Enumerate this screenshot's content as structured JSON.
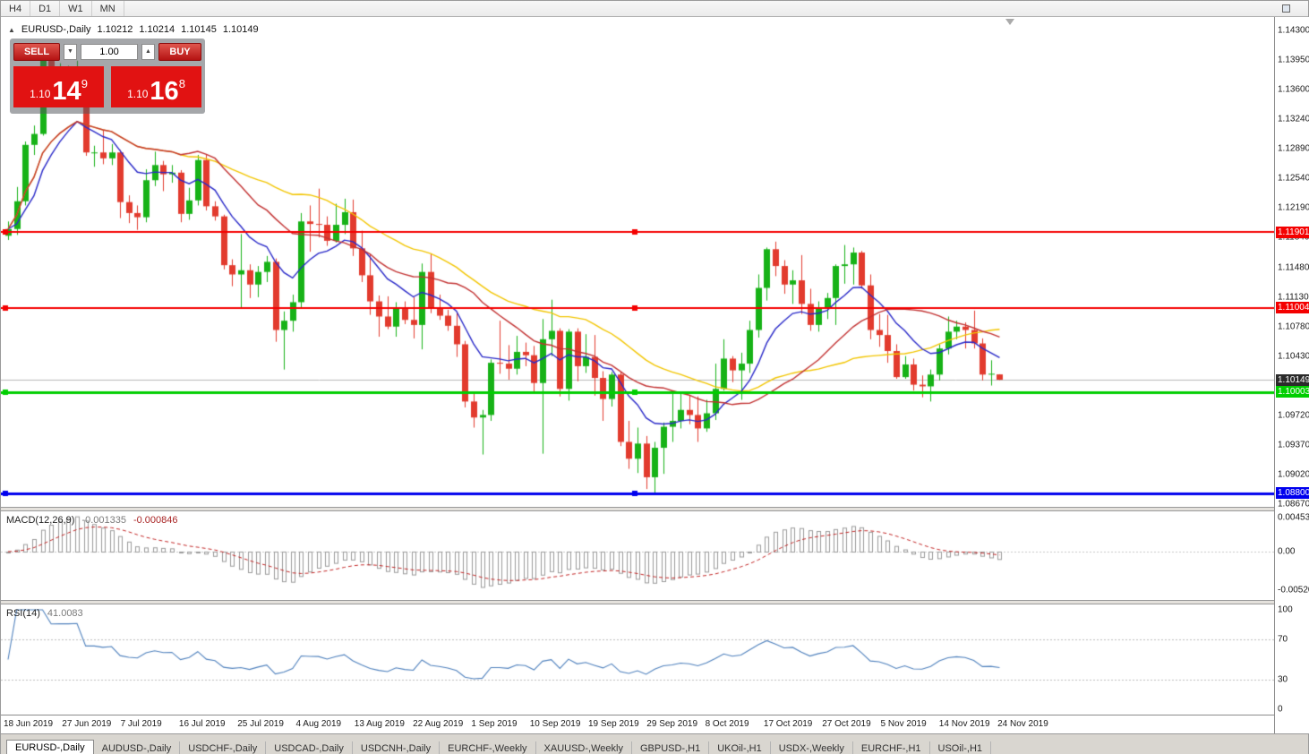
{
  "toolbar": {
    "timeframes": [
      "H4",
      "D1",
      "W1",
      "MN"
    ]
  },
  "chart_header": {
    "collapse_icon": "▲",
    "symbol": "EURUSD-,Daily",
    "open": "1.10212",
    "high": "1.10214",
    "low": "1.10145",
    "close": "1.10149"
  },
  "trade_panel": {
    "sell_label": "SELL",
    "buy_label": "BUY",
    "volume": "1.00",
    "sell_price": {
      "small": "1.10",
      "big": "14",
      "sup": "9"
    },
    "buy_price": {
      "small": "1.10",
      "big": "16",
      "sup": "8"
    }
  },
  "price_scale": {
    "ticks": [
      "1.14300",
      "1.13950",
      "1.13600",
      "1.13240",
      "1.12890",
      "1.12540",
      "1.12190",
      "1.11840",
      "1.11480",
      "1.11130",
      "1.10780",
      "1.10430",
      "1.10080",
      "1.09720",
      "1.09370",
      "1.09020",
      "1.08670"
    ]
  },
  "hlines": [
    {
      "label": "1.11901",
      "price": 1.11901,
      "color": "#f40000",
      "width": 2
    },
    {
      "label": "1.11004",
      "price": 1.11004,
      "color": "#f40000",
      "width": 2
    },
    {
      "label": "1.10003",
      "price": 1.10003,
      "color": "#00ce00",
      "width": 3
    },
    {
      "label": "1.08800",
      "price": 1.088,
      "color": "#0000ee",
      "width": 3
    }
  ],
  "current_price": {
    "label": "1.10149",
    "price": 1.10149,
    "box_color": "#2b2b2b",
    "line_color": "#b9b9b9"
  },
  "macd": {
    "title": "MACD(12,26,9)",
    "value1": "-0.001335",
    "value2": "-0.000846",
    "scale": [
      "0.004536",
      "0.00",
      "-0.005205"
    ]
  },
  "rsi": {
    "title": "RSI(14)",
    "value": "41.0083",
    "scale": [
      "100",
      "70",
      "30",
      "0"
    ]
  },
  "tabs": [
    {
      "label": "EURUSD-,Daily",
      "active": true
    },
    {
      "label": "AUDUSD-,Daily",
      "active": false
    },
    {
      "label": "USDCHF-,Daily",
      "active": false
    },
    {
      "label": "USDCAD-,Daily",
      "active": false
    },
    {
      "label": "USDCNH-,Daily",
      "active": false
    },
    {
      "label": "EURCHF-,Weekly",
      "active": false
    },
    {
      "label": "XAUUSD-,Weekly",
      "active": false
    },
    {
      "label": "GBPUSD-,H1",
      "active": false
    },
    {
      "label": "UKOil-,H1",
      "active": false
    },
    {
      "label": "USDX-,Weekly",
      "active": false
    },
    {
      "label": "EURCHF-,H1",
      "active": false
    },
    {
      "label": "USOil-,H1",
      "active": false
    }
  ],
  "chart_data": {
    "type": "candlestick",
    "title": "EURUSD-,Daily",
    "ylim": [
      1.0867,
      1.143
    ],
    "up_color": "#17b217",
    "down_color": "#e23b2e",
    "x_labels": [
      "18 Jun 2019",
      "27 Jun 2019",
      "7 Jul 2019",
      "16 Jul 2019",
      "25 Jul 2019",
      "4 Aug 2019",
      "13 Aug 2019",
      "22 Aug 2019",
      "1 Sep 2019",
      "10 Sep 2019",
      "19 Sep 2019",
      "29 Sep 2019",
      "8 Oct 2019",
      "17 Oct 2019",
      "27 Oct 2019",
      "5 Nov 2019",
      "14 Nov 2019",
      "24 Nov 2019"
    ],
    "candles": [
      [
        1.1186,
        1.1203,
        1.1181,
        1.1194
      ],
      [
        1.1194,
        1.1244,
        1.1187,
        1.1227
      ],
      [
        1.1227,
        1.1298,
        1.1222,
        1.1294
      ],
      [
        1.1294,
        1.1317,
        1.1282,
        1.1307
      ],
      [
        1.1307,
        1.1402,
        1.1305,
        1.1399
      ],
      [
        1.1399,
        1.1412,
        1.1344,
        1.1365
      ],
      [
        1.1365,
        1.1391,
        1.1357,
        1.1368
      ],
      [
        1.1368,
        1.1388,
        1.1348,
        1.1368
      ],
      [
        1.1368,
        1.1394,
        1.1352,
        1.1373
      ],
      [
        1.1373,
        1.1376,
        1.1281,
        1.1285
      ],
      [
        1.1285,
        1.1293,
        1.1268,
        1.1285
      ],
      [
        1.1285,
        1.1312,
        1.1271,
        1.1278
      ],
      [
        1.1278,
        1.1295,
        1.127,
        1.1285
      ],
      [
        1.1285,
        1.1288,
        1.1207,
        1.1226
      ],
      [
        1.1226,
        1.1234,
        1.1201,
        1.1213
      ],
      [
        1.1213,
        1.1222,
        1.1193,
        1.1208
      ],
      [
        1.1208,
        1.1265,
        1.1202,
        1.1252
      ],
      [
        1.1252,
        1.1286,
        1.1245,
        1.127
      ],
      [
        1.127,
        1.1275,
        1.1239,
        1.1259
      ],
      [
        1.1259,
        1.127,
        1.1249,
        1.1261
      ],
      [
        1.1261,
        1.1264,
        1.1202,
        1.1212
      ],
      [
        1.1212,
        1.1243,
        1.1205,
        1.1228
      ],
      [
        1.1228,
        1.1282,
        1.1222,
        1.1276
      ],
      [
        1.1276,
        1.1282,
        1.1216,
        1.1221
      ],
      [
        1.1221,
        1.1227,
        1.1204,
        1.1209
      ],
      [
        1.1209,
        1.1211,
        1.1146,
        1.1151
      ],
      [
        1.1151,
        1.1158,
        1.1126,
        1.114
      ],
      [
        1.114,
        1.1188,
        1.1101,
        1.1145
      ],
      [
        1.1145,
        1.1152,
        1.1112,
        1.1128
      ],
      [
        1.1128,
        1.115,
        1.1113,
        1.1143
      ],
      [
        1.1143,
        1.1162,
        1.1131,
        1.1155
      ],
      [
        1.1155,
        1.1159,
        1.106,
        1.1074
      ],
      [
        1.1074,
        1.1096,
        1.1027,
        1.1085
      ],
      [
        1.1085,
        1.1116,
        1.1072,
        1.1107
      ],
      [
        1.1107,
        1.1213,
        1.1101,
        1.1203
      ],
      [
        1.1203,
        1.1222,
        1.1167,
        1.12
      ],
      [
        1.12,
        1.1242,
        1.1184,
        1.1199
      ],
      [
        1.1199,
        1.1209,
        1.1174,
        1.118
      ],
      [
        1.118,
        1.1224,
        1.1178,
        1.1199
      ],
      [
        1.1199,
        1.123,
        1.1188,
        1.1214
      ],
      [
        1.1214,
        1.1229,
        1.1162,
        1.1171
      ],
      [
        1.1171,
        1.1192,
        1.1131,
        1.1139
      ],
      [
        1.1139,
        1.1164,
        1.1092,
        1.1108
      ],
      [
        1.1108,
        1.1115,
        1.1066,
        1.109
      ],
      [
        1.109,
        1.1114,
        1.1075,
        1.1078
      ],
      [
        1.1078,
        1.1107,
        1.1066,
        1.11
      ],
      [
        1.11,
        1.1108,
        1.1081,
        1.1086
      ],
      [
        1.1086,
        1.1113,
        1.1064,
        1.108
      ],
      [
        1.108,
        1.1153,
        1.1051,
        1.1143
      ],
      [
        1.1143,
        1.1164,
        1.1094,
        1.1101
      ],
      [
        1.1101,
        1.1116,
        1.1086,
        1.1091
      ],
      [
        1.1091,
        1.1098,
        1.1073,
        1.1079
      ],
      [
        1.1079,
        1.1094,
        1.1042,
        1.1057
      ],
      [
        1.1057,
        1.1061,
        1.0982,
        1.0989
      ],
      [
        1.0989,
        1.0998,
        1.0958,
        1.097
      ],
      [
        1.097,
        1.0979,
        1.0926,
        1.0973
      ],
      [
        1.0973,
        1.1039,
        1.0966,
        1.1035
      ],
      [
        1.1035,
        1.1085,
        1.1022,
        1.1034
      ],
      [
        1.1034,
        1.1056,
        1.1015,
        1.1028
      ],
      [
        1.1028,
        1.1067,
        1.1021,
        1.1048
      ],
      [
        1.1048,
        1.1059,
        1.1031,
        1.1044
      ],
      [
        1.1044,
        1.1055,
        1.0999,
        1.1011
      ],
      [
        1.1011,
        1.1087,
        1.0927,
        1.1063
      ],
      [
        1.1063,
        1.111,
        1.1043,
        1.1073
      ],
      [
        1.1073,
        1.1076,
        1.0995,
        1.1004
      ],
      [
        1.1004,
        1.1075,
        1.099,
        1.1072
      ],
      [
        1.1072,
        1.1076,
        1.1013,
        1.1031
      ],
      [
        1.1031,
        1.1069,
        1.1023,
        1.1042
      ],
      [
        1.1042,
        1.1068,
        1.0996,
        1.1017
      ],
      [
        1.1017,
        1.1025,
        1.0966,
        1.0992
      ],
      [
        1.0992,
        1.1024,
        1.0983,
        1.1021
      ],
      [
        1.1021,
        1.1024,
        1.0936,
        1.0941
      ],
      [
        1.0941,
        1.0966,
        1.0909,
        1.0921
      ],
      [
        1.0921,
        1.0958,
        1.0904,
        1.0939
      ],
      [
        1.0939,
        1.0948,
        1.0885,
        1.0899
      ],
      [
        1.0899,
        1.0941,
        1.0879,
        1.0934
      ],
      [
        1.0934,
        1.0964,
        1.0903,
        1.0959
      ],
      [
        1.0959,
        1.0999,
        1.0941,
        1.0966
      ],
      [
        1.0966,
        1.0999,
        1.0957,
        1.0979
      ],
      [
        1.0979,
        1.0996,
        1.0962,
        1.0973
      ],
      [
        1.0973,
        1.0995,
        1.0941,
        1.0957
      ],
      [
        1.0957,
        1.0991,
        1.0953,
        1.0975
      ],
      [
        1.0975,
        1.1034,
        1.0967,
        1.1004
      ],
      [
        1.1004,
        1.1063,
        1.1002,
        1.104
      ],
      [
        1.104,
        1.1043,
        1.1012,
        1.1026
      ],
      [
        1.1026,
        1.1047,
        1.0991,
        1.1034
      ],
      [
        1.1034,
        1.1085,
        1.1023,
        1.1074
      ],
      [
        1.1074,
        1.114,
        1.1065,
        1.1124
      ],
      [
        1.1124,
        1.1172,
        1.1109,
        1.117
      ],
      [
        1.117,
        1.1179,
        1.1138,
        1.115
      ],
      [
        1.115,
        1.1157,
        1.1117,
        1.1128
      ],
      [
        1.1128,
        1.1145,
        1.1105,
        1.1133
      ],
      [
        1.1133,
        1.1163,
        1.1093,
        1.1105
      ],
      [
        1.1105,
        1.1123,
        1.1073,
        1.108
      ],
      [
        1.108,
        1.1108,
        1.1072,
        1.1099
      ],
      [
        1.1099,
        1.1118,
        1.1087,
        1.1112
      ],
      [
        1.1112,
        1.1152,
        1.108,
        1.115
      ],
      [
        1.115,
        1.1175,
        1.1129,
        1.1152
      ],
      [
        1.1152,
        1.1172,
        1.1128,
        1.1166
      ],
      [
        1.1166,
        1.1168,
        1.1123,
        1.1127
      ],
      [
        1.1127,
        1.114,
        1.1063,
        1.1074
      ],
      [
        1.1074,
        1.1093,
        1.1054,
        1.1068
      ],
      [
        1.1068,
        1.1092,
        1.1035,
        1.1049
      ],
      [
        1.1049,
        1.1057,
        1.1016,
        1.1018
      ],
      [
        1.1018,
        1.1043,
        1.1016,
        1.1033
      ],
      [
        1.1033,
        1.104,
        1.1002,
        1.1009
      ],
      [
        1.1009,
        1.102,
        1.0994,
        1.1007
      ],
      [
        1.1007,
        1.1027,
        1.0989,
        1.1021
      ],
      [
        1.1021,
        1.1057,
        1.1014,
        1.1052
      ],
      [
        1.1052,
        1.109,
        1.1045,
        1.1072
      ],
      [
        1.1072,
        1.1085,
        1.1063,
        1.1078
      ],
      [
        1.1078,
        1.1083,
        1.1052,
        1.1074
      ],
      [
        1.1074,
        1.1097,
        1.1052,
        1.1058
      ],
      [
        1.1058,
        1.1064,
        1.1014,
        1.1021
      ],
      [
        1.1021,
        1.1038,
        1.1008,
        1.1022
      ],
      [
        1.10212,
        1.10214,
        1.10145,
        1.10149
      ]
    ],
    "moving_averages": [
      {
        "name": "slow-ma",
        "period": 34,
        "method": "sma",
        "color": "#f2c500"
      },
      {
        "name": "fast-ma",
        "period": 10,
        "method": "ema",
        "color": "#2929c8"
      },
      {
        "name": "mid-ma",
        "period": 21,
        "method": "sma",
        "color": "#c23232"
      }
    ],
    "indicators": {
      "macd": {
        "fast": 12,
        "slow": 26,
        "signal": 9,
        "current_macd": -0.001335,
        "current_signal": -0.000846,
        "scale_max": 0.004536,
        "scale_min": -0.005205
      },
      "rsi": {
        "period": 14,
        "current": 41.0083,
        "levels": [
          70,
          30
        ]
      }
    }
  }
}
